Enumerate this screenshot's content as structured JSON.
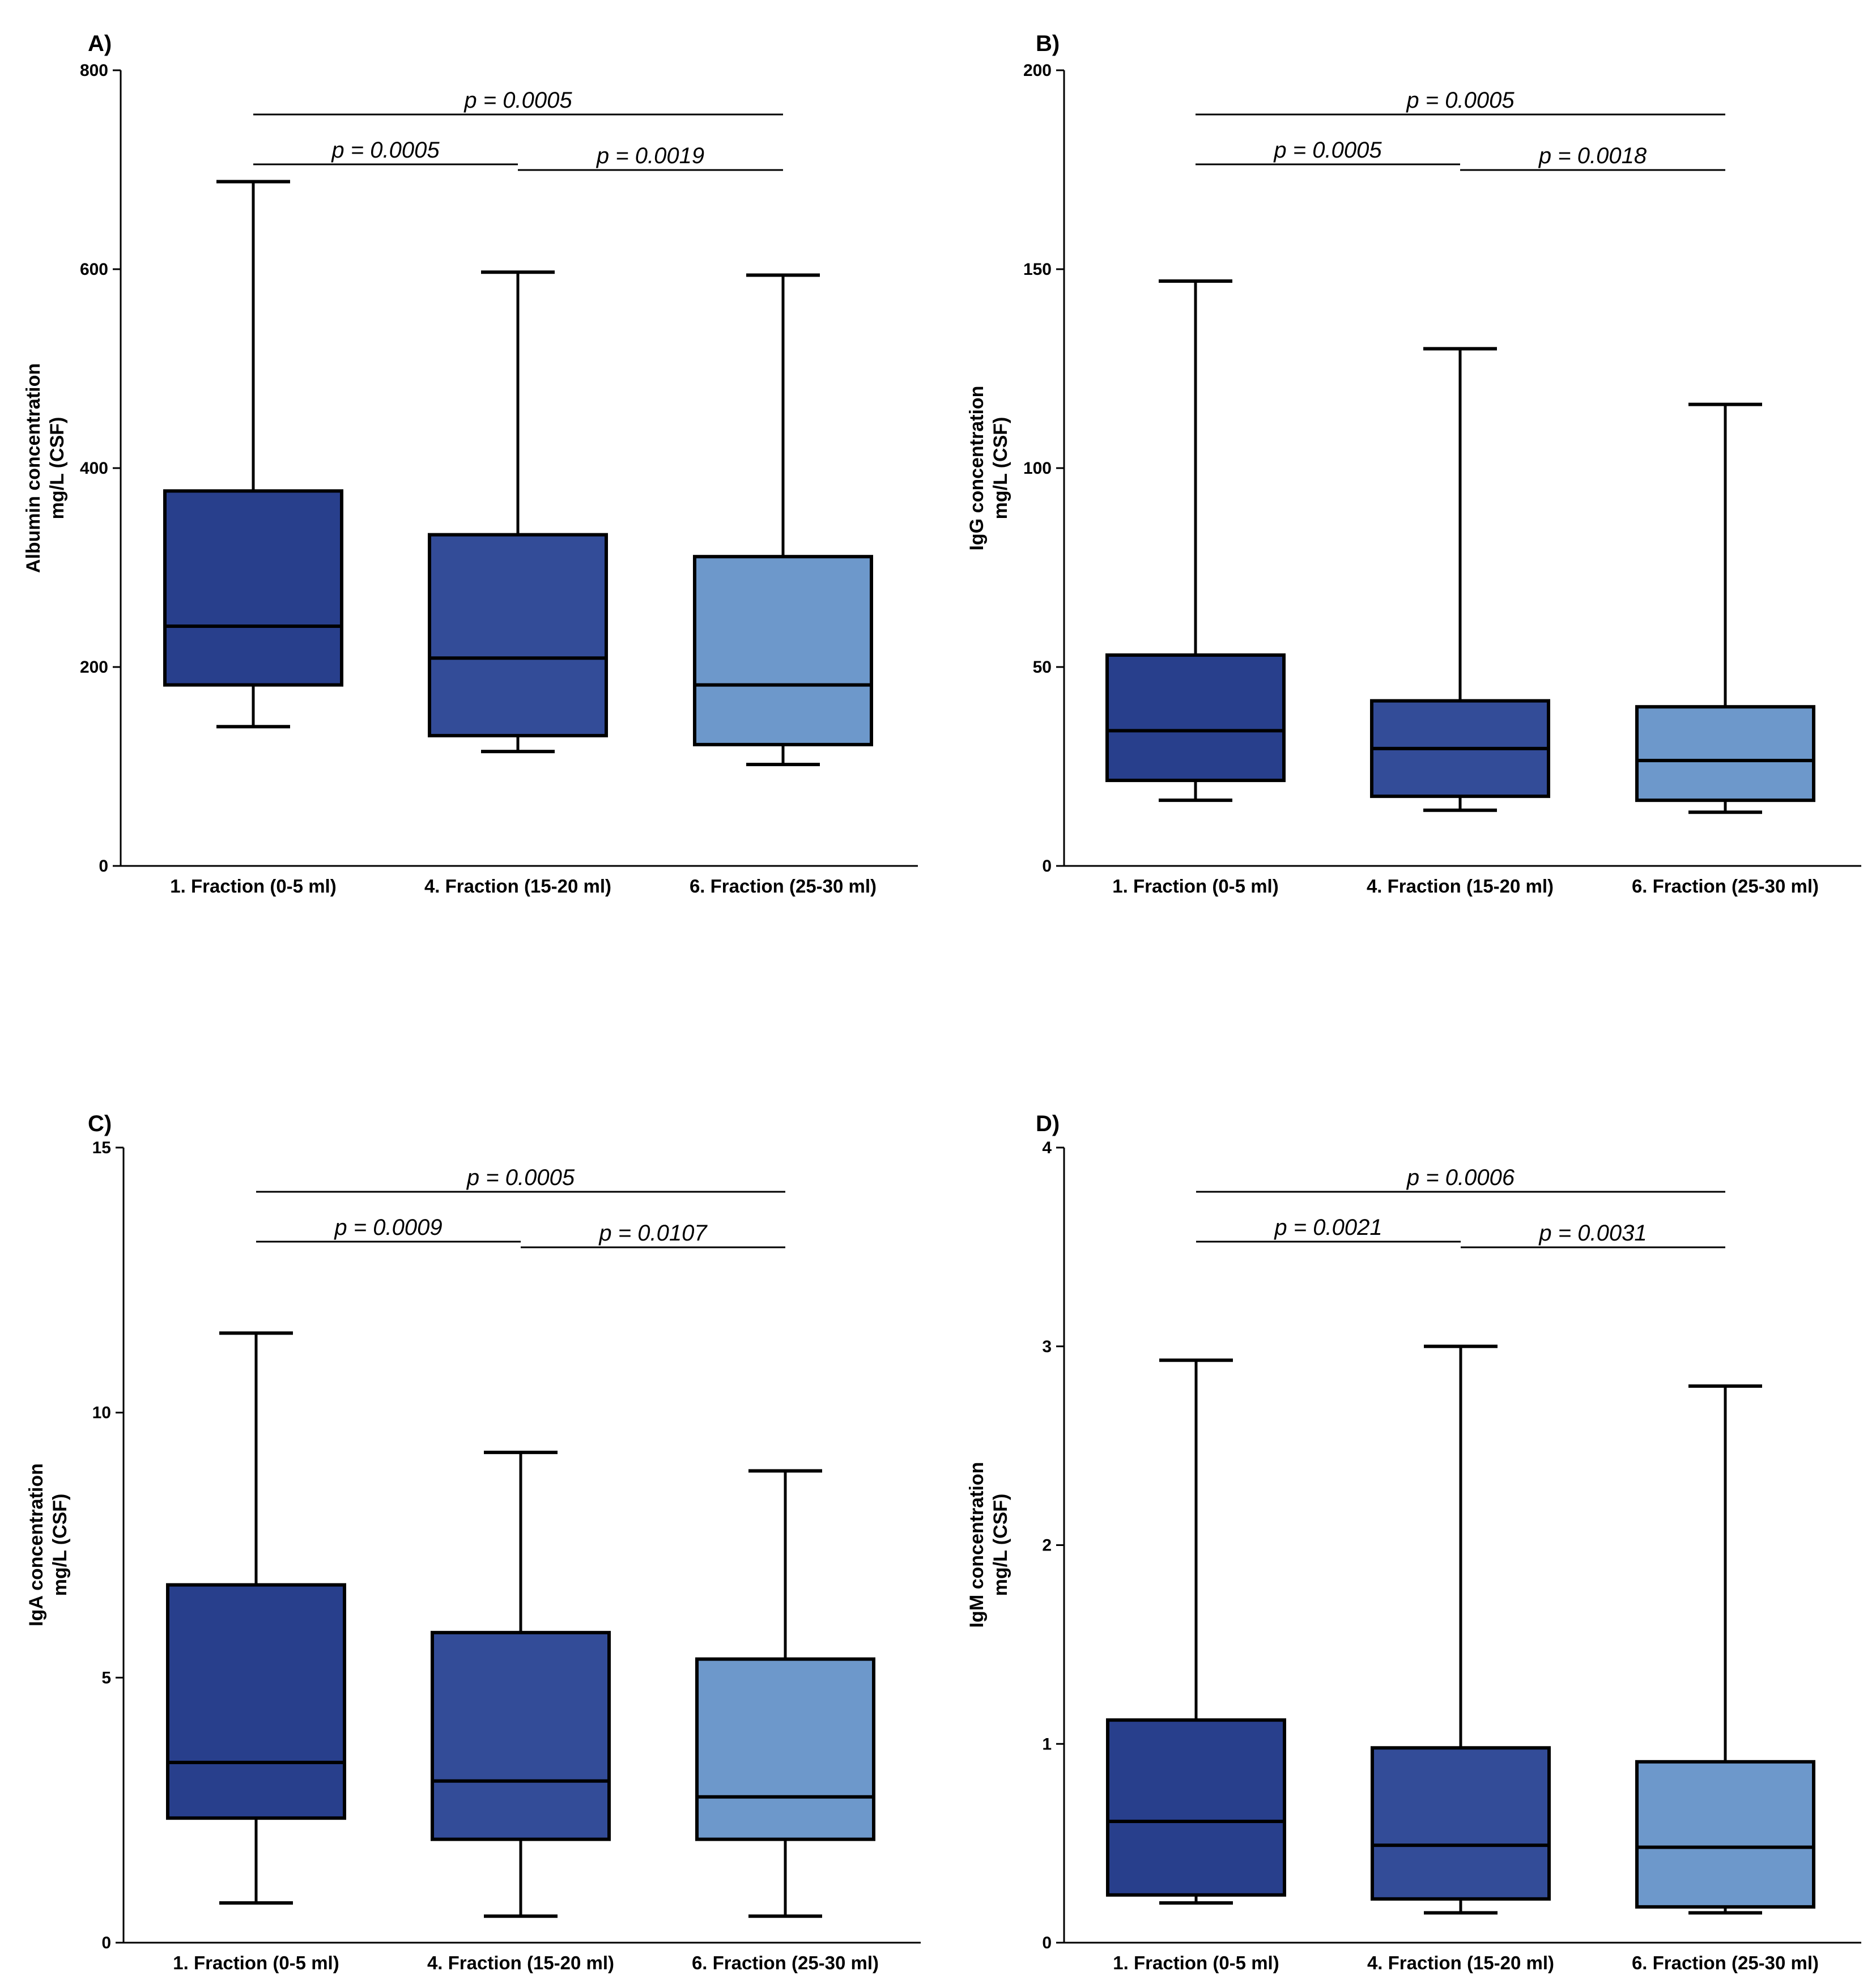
{
  "colors": {
    "dark": "#283f8c",
    "mid": "#334c98",
    "light": "#6d98cb",
    "stroke": "#000000"
  },
  "chart_data": [
    {
      "type": "box",
      "panel": "A)",
      "ylabel_line1": "Albumin concentration",
      "ylabel_line2": "mg/L (CSF)",
      "ylim": [
        0,
        800
      ],
      "yticks": [
        0,
        200,
        400,
        600,
        800
      ],
      "categories": [
        "1. Fraction (0-5 ml)",
        "4. Fraction (15-20 ml)",
        "6. Fraction (25-30 ml)"
      ],
      "boxes": [
        {
          "min": 140,
          "q1": 182,
          "median": 241,
          "q3": 377,
          "max": 688
        },
        {
          "min": 115,
          "q1": 131,
          "median": 209,
          "q3": 333,
          "max": 597
        },
        {
          "min": 102,
          "q1": 122,
          "median": 182,
          "q3": 311,
          "max": 594
        }
      ],
      "comparisons": [
        {
          "label": "p = 0.0005",
          "from": 0,
          "to": 2,
          "level": 0
        },
        {
          "label": "p = 0.0005",
          "from": 0,
          "to": 1,
          "level": 1
        },
        {
          "label": "p = 0.0019",
          "from": 1,
          "to": 2,
          "level": 2
        }
      ]
    },
    {
      "type": "box",
      "panel": "B)",
      "ylabel_line1": "IgG concentration",
      "ylabel_line2": "mg/L (CSF)",
      "ylim": [
        0,
        200
      ],
      "yticks": [
        0,
        50,
        100,
        150,
        200
      ],
      "categories": [
        "1. Fraction (0-5 ml)",
        "4. Fraction (15-20 ml)",
        "6. Fraction (25-30 ml)"
      ],
      "boxes": [
        {
          "min": 16.5,
          "q1": 21.5,
          "median": 34,
          "q3": 53,
          "max": 147
        },
        {
          "min": 14,
          "q1": 17.5,
          "median": 29.5,
          "q3": 41.5,
          "max": 130
        },
        {
          "min": 13.5,
          "q1": 16.5,
          "median": 26.5,
          "q3": 40,
          "max": 116
        }
      ],
      "comparisons": [
        {
          "label": "p = 0.0005",
          "from": 0,
          "to": 2,
          "level": 0
        },
        {
          "label": "p = 0.0005",
          "from": 0,
          "to": 1,
          "level": 1
        },
        {
          "label": "p = 0.0018",
          "from": 1,
          "to": 2,
          "level": 2
        }
      ]
    },
    {
      "type": "box",
      "panel": "C)",
      "ylabel_line1": "IgA concentration",
      "ylabel_line2": "mg/L (CSF)",
      "ylim": [
        0,
        15
      ],
      "yticks": [
        0,
        5,
        10,
        15
      ],
      "categories": [
        "1. Fraction (0-5 ml)",
        "4. Fraction (15-20 ml)",
        "6. Fraction (25-30 ml)"
      ],
      "boxes": [
        {
          "min": 0.75,
          "q1": 2.35,
          "median": 3.4,
          "q3": 6.75,
          "max": 11.5
        },
        {
          "min": 0.5,
          "q1": 1.95,
          "median": 3.05,
          "q3": 5.85,
          "max": 9.25
        },
        {
          "min": 0.5,
          "q1": 1.95,
          "median": 2.75,
          "q3": 5.35,
          "max": 8.9
        }
      ],
      "comparisons": [
        {
          "label": "p = 0.0005",
          "from": 0,
          "to": 2,
          "level": 0
        },
        {
          "label": "p = 0.0009",
          "from": 0,
          "to": 1,
          "level": 1
        },
        {
          "label": "p = 0.0107",
          "from": 1,
          "to": 2,
          "level": 2
        }
      ]
    },
    {
      "type": "box",
      "panel": "D)",
      "ylabel_line1": "IgM concentration",
      "ylabel_line2": "mg/L (CSF)",
      "ylim": [
        0,
        4
      ],
      "yticks": [
        0,
        1,
        2,
        3,
        4
      ],
      "categories": [
        "1. Fraction (0-5 ml)",
        "4. Fraction (15-20 ml)",
        "6. Fraction (25-30 ml)"
      ],
      "boxes": [
        {
          "min": 0.2,
          "q1": 0.24,
          "median": 0.61,
          "q3": 1.12,
          "max": 2.93
        },
        {
          "min": 0.15,
          "q1": 0.22,
          "median": 0.49,
          "q3": 0.98,
          "max": 3.0
        },
        {
          "min": 0.15,
          "q1": 0.18,
          "median": 0.48,
          "q3": 0.91,
          "max": 2.8
        }
      ],
      "comparisons": [
        {
          "label": "p = 0.0006",
          "from": 0,
          "to": 2,
          "level": 0
        },
        {
          "label": "p = 0.0021",
          "from": 0,
          "to": 1,
          "level": 1
        },
        {
          "label": "p = 0.0031",
          "from": 1,
          "to": 2,
          "level": 2
        }
      ]
    }
  ]
}
